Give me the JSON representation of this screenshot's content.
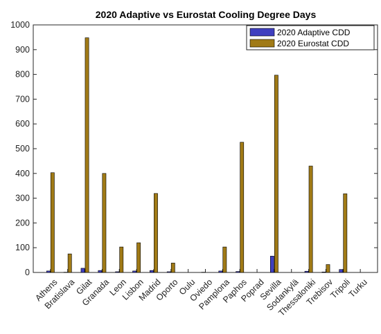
{
  "chart_data": {
    "type": "bar",
    "title": "2020 Adaptive vs Eurostat Cooling Degree Days",
    "xlabel": "",
    "ylabel": "",
    "ylim": [
      0,
      1000
    ],
    "yticks": [
      0,
      100,
      200,
      300,
      400,
      500,
      600,
      700,
      800,
      900,
      1000
    ],
    "grid": false,
    "legend_position": "top-right",
    "categories": [
      "Athens",
      "Bratislava",
      "Gilat",
      "Granada",
      "Leon",
      "Lisbon",
      "Madrid",
      "Oporto",
      "Oulu",
      "Oviedo",
      "Pamplona",
      "Paphos",
      "Poprad",
      "Sevilla",
      "Sodankylä",
      "Thessaloniki",
      "Trebisov",
      "Tripoli",
      "Turku"
    ],
    "series": [
      {
        "name": "2020 Adaptive CDD",
        "color": "#3f3fbf",
        "values": [
          6,
          1,
          17,
          8,
          3,
          6,
          8,
          3,
          0,
          1,
          6,
          4,
          0,
          66,
          0,
          5,
          2,
          12,
          0
        ]
      },
      {
        "name": "2020 Eurostat CDD",
        "color": "#a07a16",
        "values": [
          403,
          75,
          948,
          400,
          103,
          120,
          319,
          38,
          0,
          0,
          103,
          526,
          0,
          797,
          0,
          430,
          32,
          318,
          0
        ]
      }
    ]
  }
}
